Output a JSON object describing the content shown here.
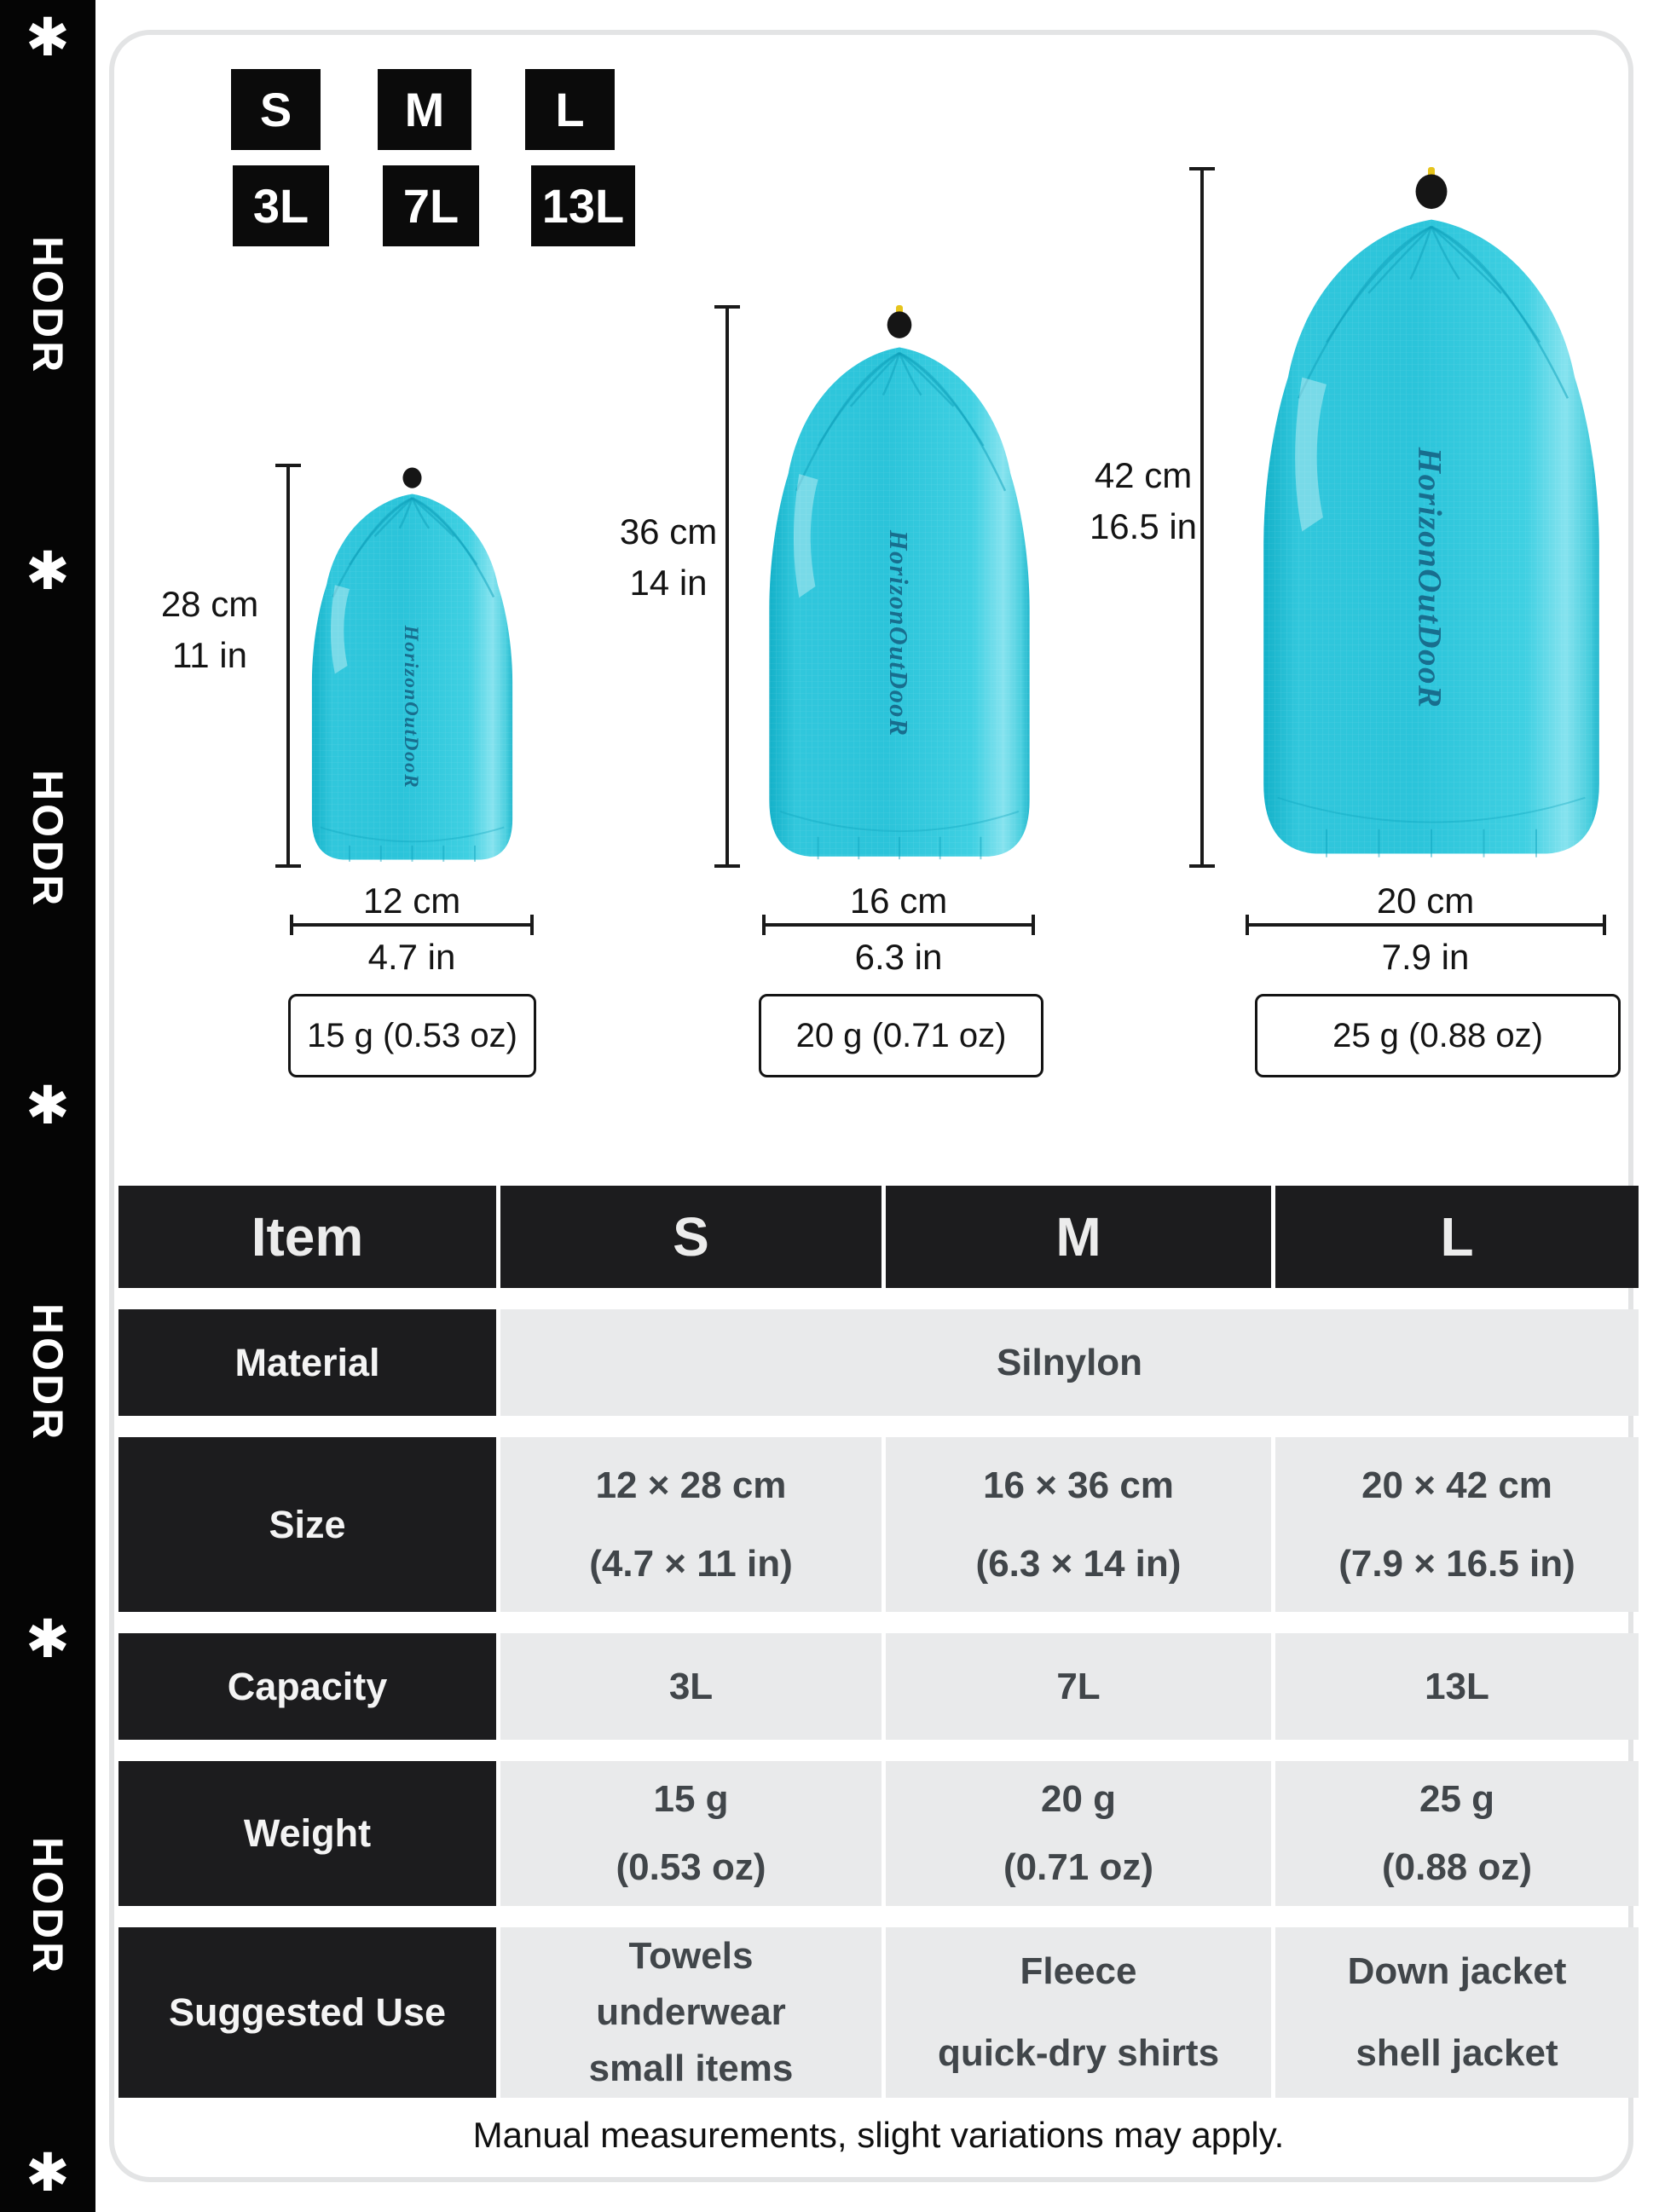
{
  "brand": {
    "sidebar_word": "HODR",
    "sidebar_mark": "✱",
    "bag_logo": "HorizonOutDooR"
  },
  "badges": {
    "sizes": [
      "S",
      "M",
      "L"
    ],
    "capacities": [
      "3L",
      "7L",
      "13L"
    ]
  },
  "bags": [
    {
      "size": "S",
      "height_cm": "28 cm",
      "height_in": "11 in",
      "width_cm": "12 cm",
      "width_in": "4.7 in",
      "weight": "15 g (0.53 oz)"
    },
    {
      "size": "M",
      "height_cm": "36 cm",
      "height_in": "14 in",
      "width_cm": "16 cm",
      "width_in": "6.3 in",
      "weight": "20 g (0.71 oz)"
    },
    {
      "size": "L",
      "height_cm": "42 cm",
      "height_in": "16.5 in",
      "width_cm": "20 cm",
      "width_in": "7.9 in",
      "weight": "25 g (0.88 oz)"
    }
  ],
  "table": {
    "headers": [
      "Item",
      "S",
      "M",
      "L"
    ],
    "rows": {
      "material": {
        "label": "Material",
        "value": "Silnylon"
      },
      "size": {
        "label": "Size",
        "cells": [
          {
            "l1": "12 × 28 cm",
            "l2": "(4.7 × 11 in)"
          },
          {
            "l1": "16 × 36 cm",
            "l2": "(6.3 × 14 in)"
          },
          {
            "l1": "20 × 42 cm",
            "l2": "(7.9 × 16.5 in)"
          }
        ]
      },
      "capacity": {
        "label": "Capacity",
        "cells": [
          "3L",
          "7L",
          "13L"
        ]
      },
      "weight": {
        "label": "Weight",
        "cells": [
          {
            "l1": "15 g",
            "l2": "(0.53 oz)"
          },
          {
            "l1": "20 g",
            "l2": "(0.71 oz)"
          },
          {
            "l1": "25 g",
            "l2": "(0.88 oz)"
          }
        ]
      },
      "use": {
        "label": "Suggested Use",
        "cells": [
          {
            "lines": [
              "Towels",
              "underwear",
              "small items"
            ]
          },
          {
            "lines": [
              "Fleece",
              "quick-dry shirts"
            ]
          },
          {
            "lines": [
              "Down jacket",
              "shell jacket"
            ]
          }
        ]
      }
    }
  },
  "footer": {
    "note": "Manual measurements, slight variations may apply."
  },
  "colors": {
    "bag_cyan": "#2bc4da",
    "bag_logo_teal": "#186e8e",
    "panel_black": "#1c1c1e",
    "cell_gray": "#e9eaeb",
    "card_border": "#e3e4e5"
  }
}
